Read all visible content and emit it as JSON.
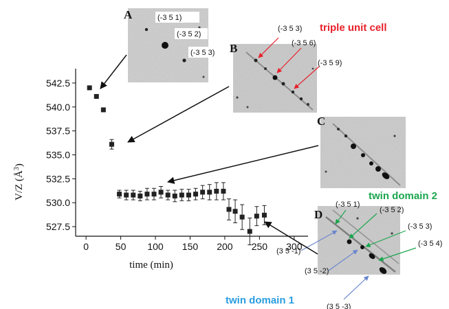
{
  "chart_data": {
    "type": "scatter",
    "xlabel": "time (min)",
    "ylabel": "V/Z (Å",
    "ylabel_sup": "3",
    "ylabel_close": ")",
    "xlim": [
      -15,
      320
    ],
    "ylim": [
      526.5,
      544.0
    ],
    "xticks": [
      0,
      50,
      100,
      150,
      200,
      250,
      300
    ],
    "yticks": [
      527.5,
      530.0,
      532.5,
      535.0,
      537.5,
      540.0,
      542.5
    ],
    "ytick_labels": [
      "527.5",
      "530.0",
      "532.5",
      "535.0",
      "537.5",
      "540.0",
      "542.5"
    ],
    "series": [
      {
        "x": [
          5,
          15,
          25,
          37,
          48,
          58,
          68,
          78,
          88,
          98,
          108,
          118,
          128,
          138,
          148,
          158,
          168,
          178,
          188,
          198,
          206,
          215,
          225,
          236,
          246,
          257
        ],
        "y": [
          542.0,
          541.1,
          539.7,
          536.1,
          530.9,
          530.8,
          530.8,
          530.7,
          530.9,
          530.9,
          531.1,
          530.8,
          530.7,
          530.8,
          530.8,
          530.9,
          531.1,
          531.1,
          531.2,
          531.2,
          529.3,
          529.1,
          528.5,
          527.0,
          528.6,
          528.7
        ],
        "err": [
          0,
          0,
          0,
          0.5,
          0.4,
          0.5,
          0.5,
          0.5,
          0.6,
          0.6,
          0.6,
          0.5,
          0.6,
          0.6,
          0.6,
          0.6,
          0.7,
          0.8,
          0.9,
          0.9,
          1.1,
          1.2,
          1.3,
          1.4,
          1.0,
          1.0
        ],
        "color": "#222222"
      }
    ]
  },
  "panels": {
    "a": {
      "label": "A",
      "reflections": [
        "(-3 5 1)",
        "(-3 5 2)",
        "(-3 5 3)"
      ]
    },
    "b": {
      "label": "B",
      "title": "triple unit cell",
      "reflections": [
        "(-3 5 3)",
        "(-3 5 6)",
        "(-3 5 9)"
      ]
    },
    "c": {
      "label": "C"
    },
    "d": {
      "label": "D",
      "domain2_title": "twin domain 2",
      "domain1_title": "twin domain 1",
      "domain2_reflections": [
        "(-3 5 1)",
        "(-3 5 2)",
        "(-3 5 3)",
        "(-3 5 4)"
      ],
      "domain1_reflections": [
        "(3 5 -1)",
        "(3 5 -2)",
        "(3 5 -3)"
      ]
    }
  },
  "colors": {
    "red": "#e8202a",
    "green": "#1aa64e",
    "blue": "#2a9de0",
    "arrow_blue": "#6a86cf",
    "black": "#111111"
  }
}
